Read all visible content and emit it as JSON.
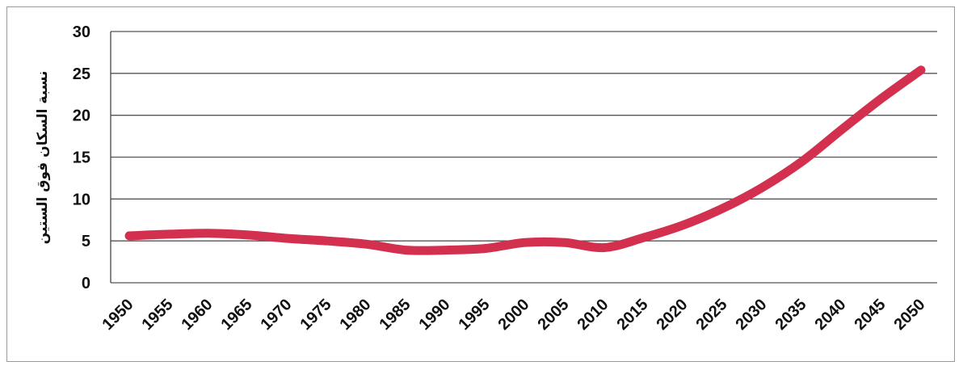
{
  "chart_data": {
    "type": "line",
    "title": "",
    "xlabel": "",
    "ylabel": "نسبة السكان فوق الستين",
    "ylim": [
      0,
      30
    ],
    "y_ticks": [
      "0",
      "5",
      "10",
      "15",
      "20",
      "25",
      "30"
    ],
    "grid": "horizontal",
    "legend": "none",
    "x": [
      "1950",
      "1955",
      "1960",
      "1965",
      "1970",
      "1975",
      "1980",
      "1985",
      "1990",
      "1995",
      "2000",
      "2005",
      "2010",
      "2015",
      "2020",
      "2025",
      "2030",
      "2035",
      "2040",
      "2045",
      "2050"
    ],
    "series": [
      {
        "values": [
          5.6,
          5.8,
          5.9,
          5.7,
          5.3,
          5.0,
          4.6,
          3.9,
          3.9,
          4.1,
          4.8,
          4.8,
          4.2,
          5.4,
          6.9,
          8.9,
          11.4,
          14.5,
          18.3,
          22.0,
          25.4
        ],
        "color": "#d32f4f"
      }
    ],
    "colors": {
      "grid": "#555555",
      "axis": "#444444",
      "line": "#d32f4f"
    }
  }
}
